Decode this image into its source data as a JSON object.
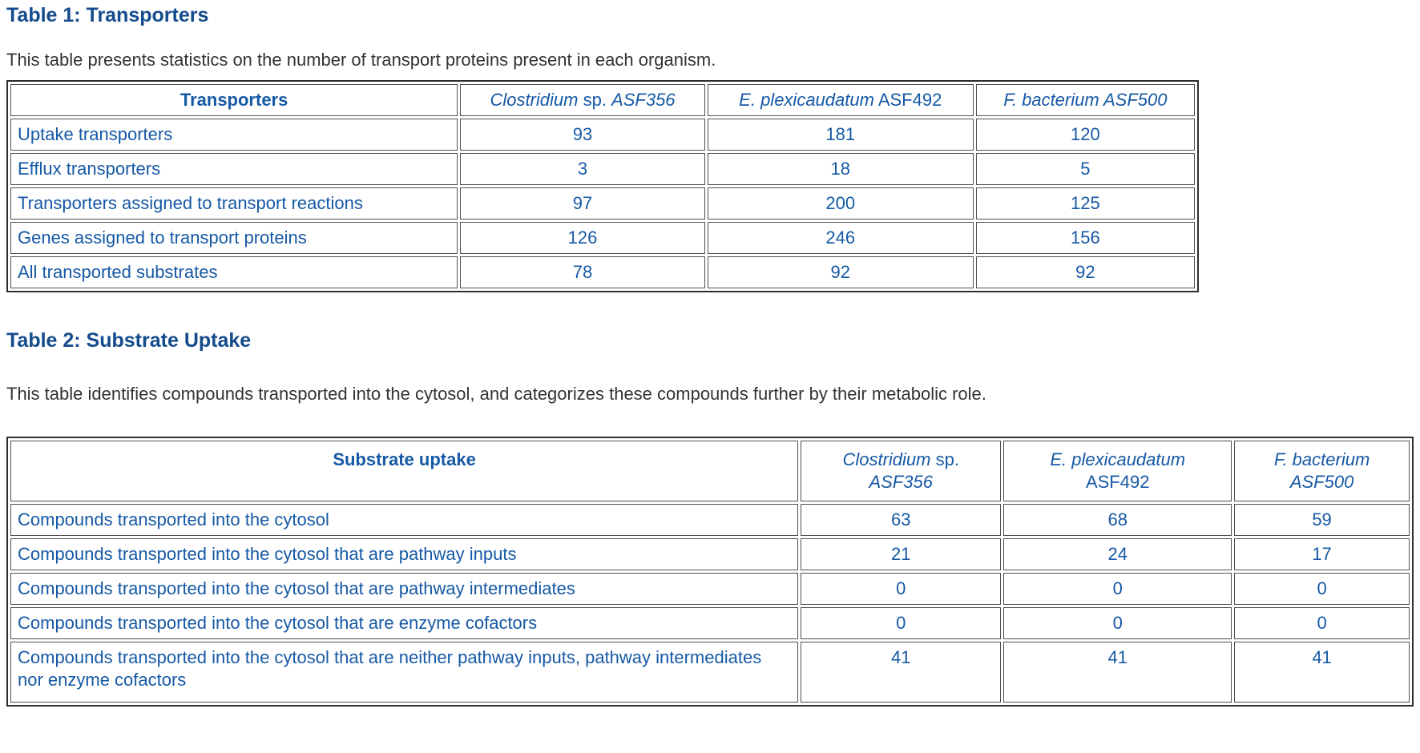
{
  "colors": {
    "heading_text": "#144B8C",
    "table_text": "#1659A5",
    "body_text": "#333333",
    "outer_border": "#2E2E2E",
    "cell_border": "#4F4F4F",
    "background": "#FFFFFF"
  },
  "table1": {
    "title": "Table 1: Transporters",
    "description": "This table presents statistics on the number of transport proteins present in each organism.",
    "header": {
      "label": "Transporters",
      "columns": [
        {
          "name": "Clostridium sp. ASF356",
          "lines": [
            [
              {
                "text": "Clostridium",
                "italic": true
              },
              {
                "text": " sp. ",
                "italic": false
              },
              {
                "text": "ASF356",
                "italic": true
              }
            ]
          ]
        },
        {
          "name": "E. plexicaudatum ASF492",
          "lines": [
            [
              {
                "text": "E. plexicaudatum",
                "italic": true
              },
              {
                "text": " ASF492",
                "italic": false
              }
            ]
          ]
        },
        {
          "name": "F. bacterium ASF500",
          "lines": [
            [
              {
                "text": "F. bacterium ASF500",
                "italic": true
              }
            ]
          ]
        }
      ]
    },
    "rows": [
      {
        "label": "Uptake transporters",
        "values": [
          "93",
          "181",
          "120"
        ]
      },
      {
        "label": "Efflux transporters",
        "values": [
          "3",
          "18",
          "5"
        ]
      },
      {
        "label": "Transporters assigned to transport reactions",
        "values": [
          "97",
          "200",
          "125"
        ]
      },
      {
        "label": "Genes assigned to transport proteins",
        "values": [
          "126",
          "246",
          "156"
        ]
      },
      {
        "label": "All transported substrates",
        "values": [
          "78",
          "92",
          "92"
        ]
      }
    ]
  },
  "table2": {
    "title": "Table 2: Substrate Uptake",
    "description": "This table identifies compounds transported into the cytosol, and categorizes these compounds further by their metabolic role.",
    "header": {
      "label": "Substrate uptake",
      "columns": [
        {
          "name": "Clostridium sp. ASF356",
          "lines": [
            [
              {
                "text": "Clostridium",
                "italic": true
              },
              {
                "text": " sp.",
                "italic": false
              }
            ],
            [
              {
                "text": "ASF356",
                "italic": true
              }
            ]
          ]
        },
        {
          "name": "E. plexicaudatum ASF492",
          "lines": [
            [
              {
                "text": "E. plexicaudatum",
                "italic": true
              }
            ],
            [
              {
                "text": "ASF492",
                "italic": false
              }
            ]
          ]
        },
        {
          "name": "F. bacterium ASF500",
          "lines": [
            [
              {
                "text": "F. bacterium",
                "italic": true
              }
            ],
            [
              {
                "text": "ASF500",
                "italic": true
              }
            ]
          ]
        }
      ]
    },
    "rows": [
      {
        "label": "Compounds transported into the cytosol",
        "values": [
          "63",
          "68",
          "59"
        ]
      },
      {
        "label": "Compounds transported into the cytosol that are pathway inputs",
        "values": [
          "21",
          "24",
          "17"
        ]
      },
      {
        "label": "Compounds transported into the cytosol that are pathway intermediates",
        "values": [
          "0",
          "0",
          "0"
        ]
      },
      {
        "label": "Compounds transported into the cytosol that are enzyme cofactors",
        "values": [
          "0",
          "0",
          "0"
        ]
      },
      {
        "label": "Compounds transported into the cytosol that are neither pathway inputs, pathway intermediates nor enzyme cofactors",
        "values": [
          "41",
          "41",
          "41"
        ]
      }
    ]
  }
}
